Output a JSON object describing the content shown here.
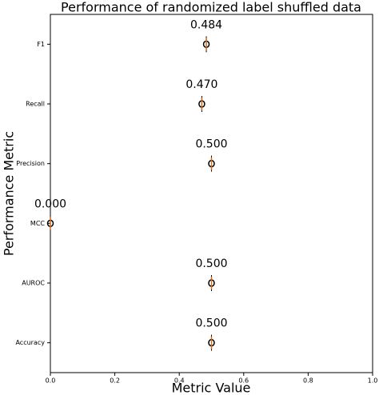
{
  "chart_data": {
    "type": "box",
    "title": "Performance of randomized label shuffled data",
    "x_label": "Metric Value",
    "y_label": "Performance Metric",
    "categories": [
      "F1",
      "Recall",
      "Precision",
      "MCC",
      "AUROC",
      "Accuracy"
    ],
    "values": [
      0.484,
      0.47,
      0.5,
      0.0,
      0.5,
      0.5
    ],
    "value_labels": [
      "0.484",
      "0.470",
      "0.500",
      "0.000",
      "0.500",
      "0.500"
    ],
    "color": "#d2691e",
    "xlim": [
      0,
      1
    ],
    "xticks": [
      {
        "value": 0,
        "label": "0.0"
      },
      0.2,
      0.4,
      0.6,
      0.8,
      {
        "value": 1,
        "label": "1.0"
      }
    ]
  }
}
